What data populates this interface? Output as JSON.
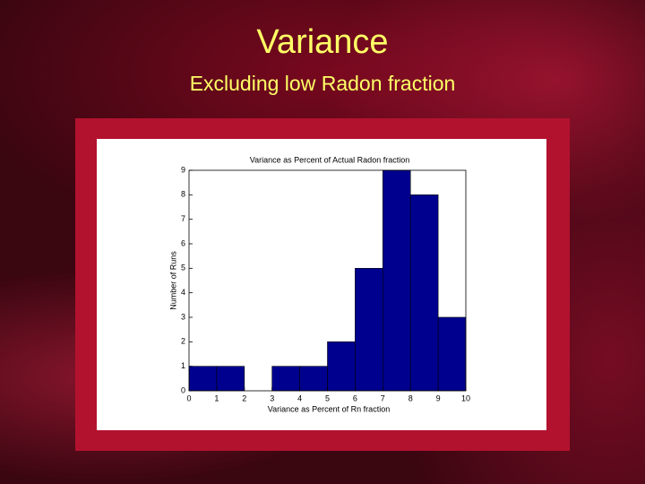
{
  "slide": {
    "title": "Variance",
    "subtitle": "Excluding low Radon fraction"
  },
  "chart_data": {
    "type": "histogram",
    "title": "Variance as Percent of Actual Radon fraction",
    "x_label": "Variance as Percent of Rn fraction",
    "y_label": "Number of Runs",
    "bins": [
      0,
      1,
      2,
      3,
      4,
      5,
      6,
      7,
      8,
      9,
      10
    ],
    "values": [
      1,
      1,
      0,
      1,
      1,
      2,
      5,
      9,
      8,
      3
    ],
    "color": "#00008f",
    "xlim": [
      0,
      10
    ],
    "xticks": [
      0,
      1,
      2,
      3,
      4,
      5,
      6,
      7,
      8,
      9,
      10
    ],
    "ylim": [
      0,
      9
    ],
    "yticks": [
      0,
      1,
      2,
      3,
      4,
      5,
      6,
      7,
      8,
      9
    ]
  }
}
